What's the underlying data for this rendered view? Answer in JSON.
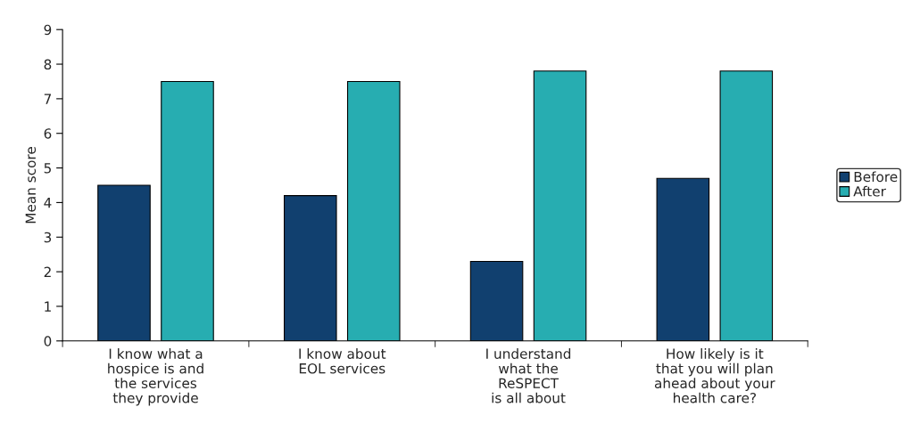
{
  "chart_data": {
    "type": "bar",
    "ylabel": "Mean score",
    "categories": [
      "I know what a\nhospice is and\nthe services\nthey provide",
      "I know about\nEOL services",
      "I understand\nwhat the\nReSPECT\nis all about",
      "How likely is it\nthat you will plan\nahead about your\nhealth care?"
    ],
    "series": [
      {
        "name": "Before",
        "color": "#11406f",
        "values": [
          4.5,
          4.2,
          2.3,
          4.7
        ]
      },
      {
        "name": "After",
        "color": "#27adb1",
        "values": [
          7.5,
          7.5,
          7.8,
          7.8
        ]
      }
    ],
    "ylim": [
      0,
      9
    ],
    "yticks": [
      0,
      1,
      2,
      3,
      4,
      5,
      6,
      7,
      8,
      9
    ],
    "grid": false,
    "legend": "right"
  }
}
